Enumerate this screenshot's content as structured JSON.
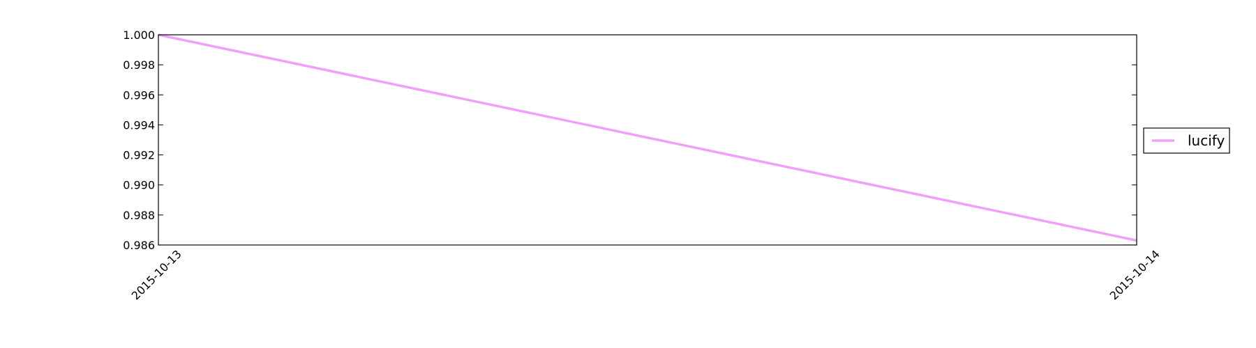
{
  "chart_data": {
    "type": "line",
    "title": "",
    "xlabel": "",
    "ylabel": "",
    "x": [
      "2015-10-13",
      "2015-10-14"
    ],
    "series": [
      {
        "name": "lucify",
        "values": [
          1.0,
          0.9863
        ],
        "color": "#f0a0f8"
      }
    ],
    "ylim": [
      0.986,
      1.0
    ],
    "yticks": [
      "1.000",
      "0.998",
      "0.996",
      "0.994",
      "0.992",
      "0.990",
      "0.988",
      "0.986"
    ],
    "xticks": [
      "2015-10-13",
      "2015-10-14"
    ],
    "grid": false,
    "legend_position": "right"
  }
}
